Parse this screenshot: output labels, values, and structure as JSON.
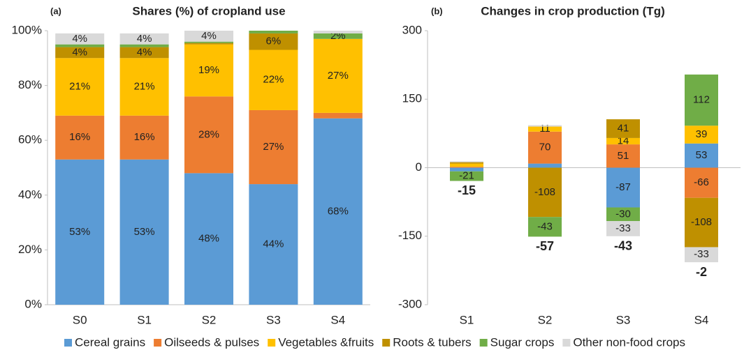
{
  "chart_data": [
    {
      "type": "stacked-bar",
      "panel_label": "(a)",
      "title": "Shares (%) of cropland use",
      "categories": [
        "S0",
        "S1",
        "S2",
        "S3",
        "S4"
      ],
      "ylim": [
        0,
        100
      ],
      "yticks": [
        {
          "value": 0,
          "label": "0%"
        },
        {
          "value": 20,
          "label": "20%"
        },
        {
          "value": 40,
          "label": "40%"
        },
        {
          "value": 60,
          "label": "60%"
        },
        {
          "value": 80,
          "label": "80%"
        },
        {
          "value": 100,
          "label": "100%"
        }
      ],
      "series": [
        {
          "name": "Cereal grains",
          "color": "#5b9bd5",
          "values": [
            53,
            53,
            48,
            44,
            68
          ],
          "value_labels": [
            "53%",
            "53%",
            "48%",
            "44%",
            "68%"
          ]
        },
        {
          "name": "Oilseeds & pulses",
          "color": "#ed7d31",
          "values": [
            16,
            16,
            28,
            27,
            2
          ],
          "value_labels": [
            "16%",
            "16%",
            "28%",
            "27%",
            null
          ]
        },
        {
          "name": "Vegetables &fruits",
          "color": "#ffc000",
          "values": [
            21,
            21,
            19,
            22,
            27
          ],
          "value_labels": [
            "21%",
            "21%",
            "19%",
            "22%",
            "27%"
          ]
        },
        {
          "name": "Roots & tubers",
          "color": "#bf9000",
          "values": [
            4,
            4,
            0.5,
            6,
            0
          ],
          "value_labels": [
            "4%",
            "4%",
            null,
            "6%",
            null
          ]
        },
        {
          "name": "Sugar crops",
          "color": "#70ad47",
          "values": [
            1,
            1,
            0.5,
            1,
            2
          ],
          "value_labels": [
            null,
            null,
            null,
            null,
            "2%"
          ]
        },
        {
          "name": "Other non-food crops",
          "color": "#d9d9d9",
          "values": [
            4,
            4,
            4,
            0,
            1
          ],
          "value_labels": [
            "4%",
            "4%",
            "4%",
            null,
            null
          ]
        }
      ]
    },
    {
      "type": "diverging-stacked-bar",
      "panel_label": "(b)",
      "title": "Changes in crop production (Tg)",
      "categories": [
        "S1",
        "S2",
        "S3",
        "S4"
      ],
      "ylim": [
        -300,
        300
      ],
      "yticks": [
        -300,
        -150,
        0,
        150,
        300
      ],
      "totals": [
        -15,
        -57,
        -43,
        -2
      ],
      "series": [
        {
          "name": "Cereal grains",
          "color": "#5b9bd5",
          "values": [
            -8,
            9,
            -87,
            53
          ],
          "value_labels": [
            null,
            null,
            "-87",
            "53"
          ]
        },
        {
          "name": "Oilseeds & pulses",
          "color": "#ed7d31",
          "values": [
            2,
            70,
            51,
            -66
          ],
          "value_labels": [
            null,
            "70",
            "51",
            "-66"
          ]
        },
        {
          "name": "Vegetables &fruits",
          "color": "#ffc000",
          "values": [
            7,
            11,
            14,
            39
          ],
          "value_labels": [
            null,
            "11",
            "14",
            "39"
          ]
        },
        {
          "name": "Roots & tubers",
          "color": "#bf9000",
          "values": [
            3,
            -108,
            41,
            -108
          ],
          "value_labels": [
            null,
            "-108",
            "41",
            "-108"
          ]
        },
        {
          "name": "Sugar crops",
          "color": "#70ad47",
          "values": [
            -21,
            -43,
            -30,
            112
          ],
          "value_labels": [
            "-21",
            "-43",
            "-30",
            "112"
          ]
        },
        {
          "name": "Other non-food crops",
          "color": "#d9d9d9",
          "values": [
            2,
            3,
            -33,
            -33
          ],
          "value_labels": [
            null,
            null,
            "-33",
            "-33"
          ]
        }
      ]
    }
  ]
}
